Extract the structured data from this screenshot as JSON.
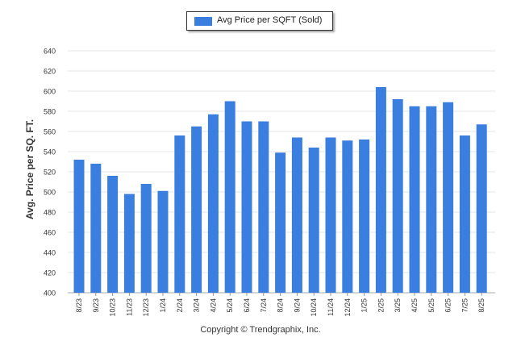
{
  "chart_data": {
    "type": "bar",
    "categories": [
      "8/23",
      "9/23",
      "10/23",
      "11/23",
      "12/23",
      "1/24",
      "2/24",
      "3/24",
      "4/24",
      "5/24",
      "6/24",
      "7/24",
      "8/24",
      "9/24",
      "10/24",
      "11/24",
      "12/24",
      "1/25",
      "2/25",
      "3/25",
      "4/25",
      "5/25",
      "6/25",
      "7/25",
      "8/25"
    ],
    "series": [
      {
        "name": "Avg Price per SQFT (Sold)",
        "values": [
          532,
          528,
          516,
          498,
          508,
          501,
          556,
          565,
          577,
          590,
          570,
          570,
          539,
          554,
          544,
          554,
          551,
          552,
          604,
          592,
          585,
          585,
          589,
          556,
          567
        ]
      }
    ],
    "ylabel": "Avg. Price per SQ. FT.",
    "xlabel": "",
    "ylim": [
      400,
      640
    ],
    "yticks": [
      400,
      420,
      440,
      460,
      480,
      500,
      520,
      540,
      560,
      580,
      600,
      620,
      640
    ],
    "grid": true,
    "legend": "top-center",
    "colors": {
      "bar": "#3a7fe0"
    }
  },
  "footer": {
    "copyright": "Copyright © Trendgraphix, Inc."
  }
}
